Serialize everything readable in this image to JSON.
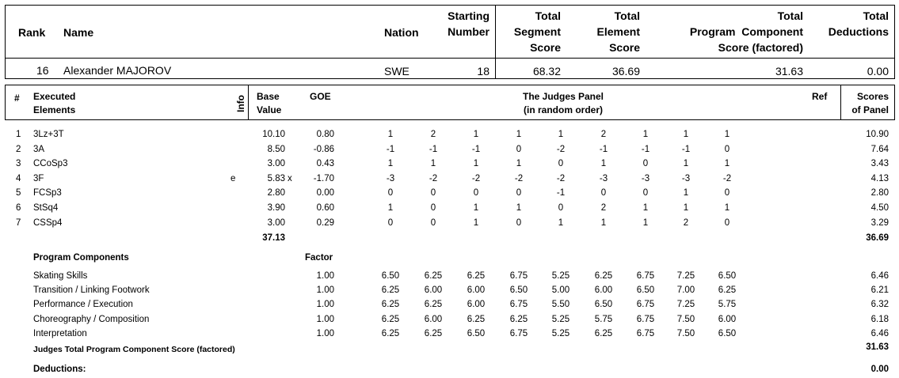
{
  "header": {
    "rank": "Rank",
    "name": "Name",
    "nation": "Nation",
    "starting_number": [
      "Starting",
      "Number"
    ],
    "total_segment_score": [
      "Total",
      "Segment",
      "Score"
    ],
    "total_element_score": [
      "Total",
      "Element",
      "Score"
    ],
    "total_program_component_score": [
      "Total",
      "Program  Component",
      "Score (factored)"
    ],
    "total_deductions": [
      "Total",
      "Deductions"
    ]
  },
  "skater": {
    "rank": "16",
    "name": "Alexander MAJOROV",
    "nation": "SWE",
    "starting_number": "18",
    "total_segment_score": "68.32",
    "total_element_score": "36.69",
    "total_program_component_score": "31.63",
    "total_deductions": "0.00"
  },
  "elements_header": {
    "num": "#",
    "executed": [
      "Executed",
      "Elements"
    ],
    "info": "Info",
    "base_value": [
      "Base",
      "Value"
    ],
    "goe": "GOE",
    "judges_panel": [
      "The Judges Panel",
      "(in random order)"
    ],
    "ref": "Ref",
    "scores_of_panel": [
      "Scores",
      "of Panel"
    ]
  },
  "elements": [
    {
      "num": "1",
      "name": "3Lz+3T",
      "info": "",
      "base": "10.10",
      "x": "",
      "goe": "0.80",
      "judges": [
        "1",
        "2",
        "1",
        "1",
        "1",
        "2",
        "1",
        "1",
        "1"
      ],
      "score": "10.90"
    },
    {
      "num": "2",
      "name": "3A",
      "info": "",
      "base": "8.50",
      "x": "",
      "goe": "-0.86",
      "judges": [
        "-1",
        "-1",
        "-1",
        "0",
        "-2",
        "-1",
        "-1",
        "-1",
        "0"
      ],
      "score": "7.64"
    },
    {
      "num": "3",
      "name": "CCoSp3",
      "info": "",
      "base": "3.00",
      "x": "",
      "goe": "0.43",
      "judges": [
        "1",
        "1",
        "1",
        "1",
        "0",
        "1",
        "0",
        "1",
        "1"
      ],
      "score": "3.43"
    },
    {
      "num": "4",
      "name": "3F",
      "info": "e",
      "base": "5.83",
      "x": "x",
      "goe": "-1.70",
      "judges": [
        "-3",
        "-2",
        "-2",
        "-2",
        "-2",
        "-3",
        "-3",
        "-3",
        "-2"
      ],
      "score": "4.13"
    },
    {
      "num": "5",
      "name": "FCSp3",
      "info": "",
      "base": "2.80",
      "x": "",
      "goe": "0.00",
      "judges": [
        "0",
        "0",
        "0",
        "0",
        "-1",
        "0",
        "0",
        "1",
        "0"
      ],
      "score": "2.80"
    },
    {
      "num": "6",
      "name": "StSq4",
      "info": "",
      "base": "3.90",
      "x": "",
      "goe": "0.60",
      "judges": [
        "1",
        "0",
        "1",
        "1",
        "0",
        "2",
        "1",
        "1",
        "1"
      ],
      "score": "4.50"
    },
    {
      "num": "7",
      "name": "CSSp4",
      "info": "",
      "base": "3.00",
      "x": "",
      "goe": "0.29",
      "judges": [
        "0",
        "0",
        "1",
        "0",
        "1",
        "1",
        "1",
        "2",
        "0"
      ],
      "score": "3.29"
    }
  ],
  "elements_totals": {
    "base": "37.13",
    "score": "36.69"
  },
  "components_header": {
    "title": "Program Components",
    "factor": "Factor"
  },
  "components": [
    {
      "name": "Skating Skills",
      "factor": "1.00",
      "judges": [
        "6.50",
        "6.25",
        "6.25",
        "6.75",
        "5.25",
        "6.25",
        "6.75",
        "7.25",
        "6.50"
      ],
      "score": "6.46"
    },
    {
      "name": "Transition / Linking Footwork",
      "factor": "1.00",
      "judges": [
        "6.25",
        "6.00",
        "6.00",
        "6.50",
        "5.00",
        "6.00",
        "6.50",
        "7.00",
        "6.25"
      ],
      "score": "6.21"
    },
    {
      "name": "Performance / Execution",
      "factor": "1.00",
      "judges": [
        "6.25",
        "6.25",
        "6.00",
        "6.75",
        "5.50",
        "6.50",
        "6.75",
        "7.25",
        "5.75"
      ],
      "score": "6.32"
    },
    {
      "name": "Choreography / Composition",
      "factor": "1.00",
      "judges": [
        "6.25",
        "6.00",
        "6.25",
        "6.25",
        "5.25",
        "5.75",
        "6.75",
        "7.50",
        "6.00"
      ],
      "score": "6.18"
    },
    {
      "name": "Interpretation",
      "factor": "1.00",
      "judges": [
        "6.25",
        "6.25",
        "6.50",
        "6.75",
        "5.25",
        "6.25",
        "6.75",
        "7.50",
        "6.50"
      ],
      "score": "6.46"
    }
  ],
  "components_total": {
    "label": "Judges Total Program Component Score (factored)",
    "score": "31.63"
  },
  "deductions": {
    "label": "Deductions:",
    "score": "0.00"
  }
}
